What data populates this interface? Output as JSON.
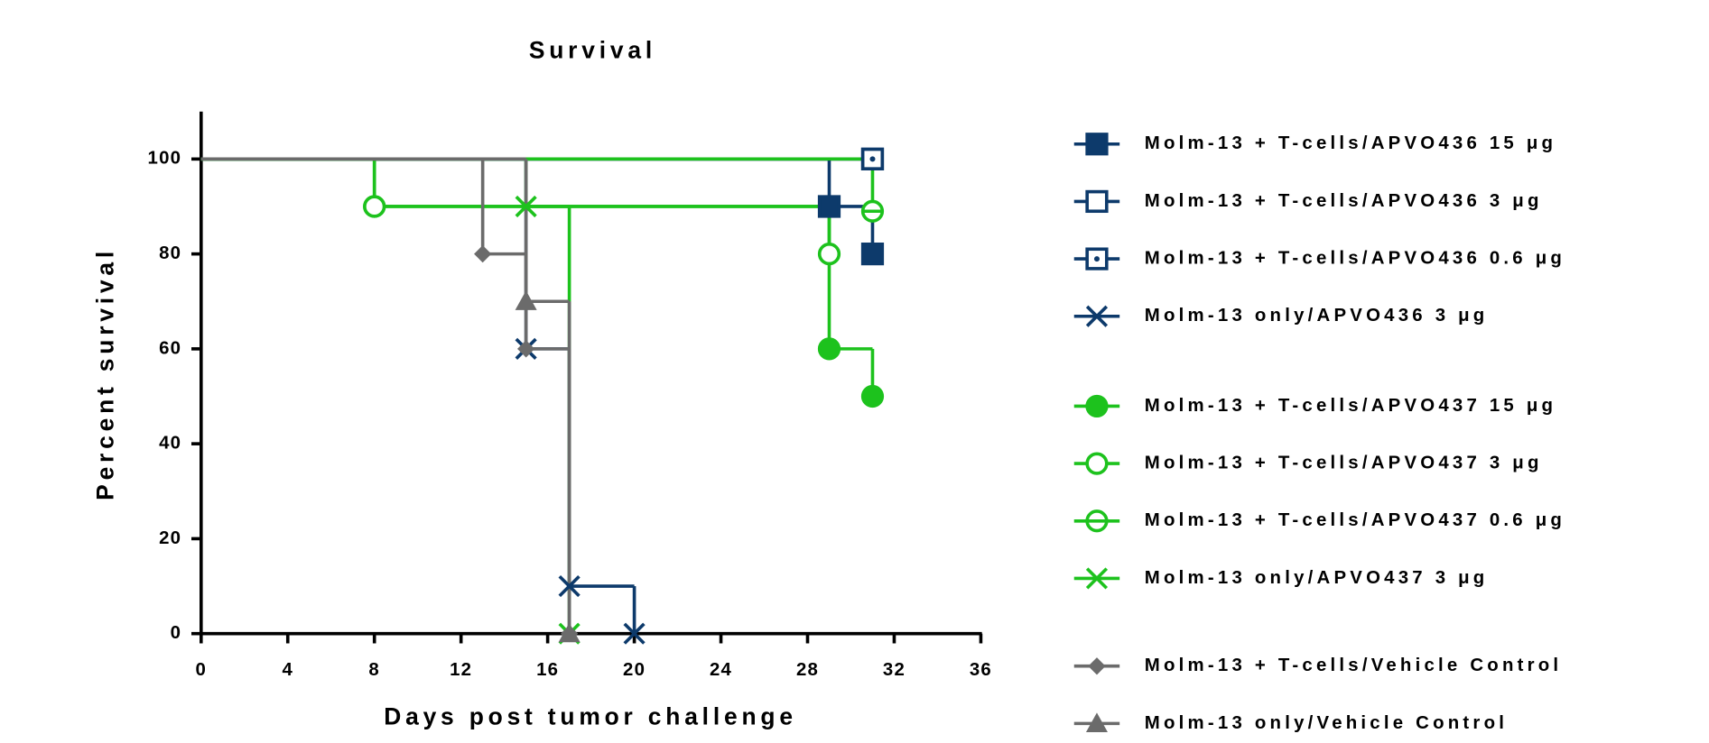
{
  "chart_data": {
    "type": "survival",
    "title": "Survival",
    "x_label": "Days post tumor challenge",
    "y_label": "Percent survival",
    "xlim": [
      0,
      36
    ],
    "xticks": [
      0,
      4,
      8,
      12,
      16,
      20,
      24,
      28,
      32,
      36
    ],
    "ylim": [
      0,
      110
    ],
    "yticks": [
      0,
      20,
      40,
      60,
      80,
      100
    ],
    "grid": false,
    "legend_position": "right",
    "series": [
      {
        "name": "Molm-13 + T-cells/APVO436 15 μg",
        "color": "#0d3a6b",
        "marker": "square",
        "x": [
          0,
          29,
          31
        ],
        "values": [
          100,
          90,
          80
        ]
      },
      {
        "name": "Molm-13 + T-cells/APVO436 3 μg",
        "color": "#0d3a6b",
        "marker": "square-open",
        "x": [
          0,
          31
        ],
        "values": [
          100,
          100
        ]
      },
      {
        "name": "Molm-13 + T-cells/APVO436 0.6 μg",
        "color": "#0d3a6b",
        "marker": "square-dot",
        "x": [
          0,
          31
        ],
        "values": [
          100,
          100
        ]
      },
      {
        "name": "Molm-13 only/APVO436 3 μg",
        "color": "#0d3a6b",
        "marker": "x",
        "x": [
          0,
          15,
          17,
          20
        ],
        "values": [
          100,
          60,
          10,
          0
        ]
      },
      {
        "name": "Molm-13 + T-cells/APVO437 15 μg",
        "color": "#1dc21d",
        "marker": "circle",
        "x": [
          0,
          8,
          29,
          31
        ],
        "values": [
          100,
          90,
          60,
          50
        ]
      },
      {
        "name": "Molm-13 + T-cells/APVO437 3 μg",
        "color": "#1dc21d",
        "marker": "circle-open",
        "x": [
          0,
          8,
          29
        ],
        "values": [
          100,
          90,
          80
        ]
      },
      {
        "name": "Molm-13 + T-cells/APVO437 0.6 μg",
        "color": "#1dc21d",
        "marker": "circle-dot",
        "x": [
          0,
          31
        ],
        "values": [
          100,
          89
        ]
      },
      {
        "name": "Molm-13 only/APVO437 3 μg",
        "color": "#1dc21d",
        "marker": "x",
        "x": [
          0,
          15,
          17
        ],
        "values": [
          100,
          90,
          0
        ]
      },
      {
        "name": "Molm-13 + T-cells/Vehicle Control",
        "color": "#6b6b6b",
        "marker": "diamond",
        "x": [
          0,
          13,
          15,
          17
        ],
        "values": [
          100,
          80,
          60,
          0
        ]
      },
      {
        "name": "Molm-13 only/Vehicle Control",
        "color": "#6b6b6b",
        "marker": "triangle",
        "x": [
          0,
          15,
          17
        ],
        "values": [
          100,
          70,
          0
        ]
      }
    ]
  }
}
